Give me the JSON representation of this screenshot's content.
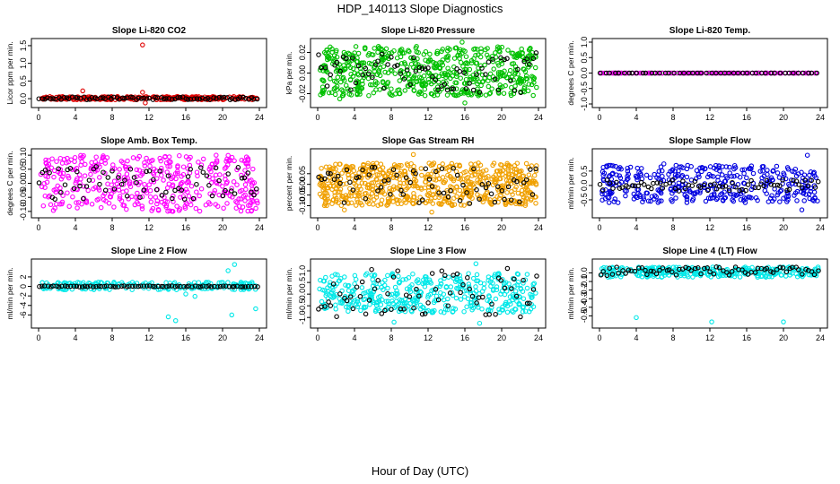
{
  "main_title": "HDP_140113  Slope Diagnostics",
  "x_axis_label": "Hour of Day (UTC)",
  "chart_data": [
    {
      "type": "scatter",
      "title": "Slope Li-820 CO2",
      "ylabel": "Licor ppm per min.",
      "xlim": [
        0,
        24
      ],
      "ylim": [
        -0.15,
        1.6
      ],
      "xticks": [
        0,
        4,
        8,
        12,
        16,
        20,
        24
      ],
      "yticks": [
        0.0,
        0.5,
        1.0,
        1.5
      ],
      "ytick_labels": [
        "0.0",
        "0.5",
        "1.0",
        "1.5"
      ],
      "main_color": "#e00000",
      "center": 0.0,
      "spread": 0.02,
      "outliers": [
        {
          "x": 11.3,
          "y": 1.52
        },
        {
          "x": 11.3,
          "y": 0.18
        },
        {
          "x": 11.6,
          "y": -0.12
        },
        {
          "x": 4.8,
          "y": 0.22
        }
      ],
      "series": [
        {
          "name": "primary",
          "color": "#e00000",
          "count": 280,
          "y_min": -0.03,
          "y_max": 0.06
        },
        {
          "name": "reference",
          "color": "#000000",
          "count": 80,
          "y_min": -0.03,
          "y_max": 0.05
        }
      ]
    },
    {
      "type": "scatter",
      "title": "Slope Li-820 Pressure",
      "ylabel": "kPa per min.",
      "xlim": [
        0,
        24
      ],
      "ylim": [
        -0.03,
        0.03
      ],
      "xticks": [
        0,
        4,
        8,
        12,
        16,
        20,
        24
      ],
      "yticks": [
        -0.02,
        0.0,
        0.02
      ],
      "ytick_labels": [
        "-0.02",
        "0.00",
        "0.02"
      ],
      "main_color": "#00c000",
      "center": 0.002,
      "spread": 0.02,
      "outliers": [
        {
          "x": 15.7,
          "y": 0.03
        },
        {
          "x": 2.4,
          "y": -0.025
        },
        {
          "x": 16.0,
          "y": -0.029
        }
      ],
      "series": [
        {
          "name": "primary",
          "color": "#00c000",
          "count": 600,
          "y_min": -0.022,
          "y_max": 0.026
        },
        {
          "name": "reference",
          "color": "#000000",
          "count": 70,
          "y_min": -0.02,
          "y_max": 0.02
        }
      ]
    },
    {
      "type": "scatter",
      "title": "Slope Li-820 Temp.",
      "ylabel": "degrees C per min.",
      "xlim": [
        0,
        24
      ],
      "ylim": [
        -1.0,
        1.0
      ],
      "xticks": [
        0,
        4,
        8,
        12,
        16,
        20,
        24
      ],
      "yticks": [
        -1.0,
        -0.5,
        0.0,
        0.5,
        1.0
      ],
      "ytick_labels": [
        "-1.0",
        "-0.5",
        "0.0",
        "0.5",
        "1.0"
      ],
      "main_color": "#e000e0",
      "center": 0.0,
      "spread": 0.0,
      "outliers": [],
      "series": [
        {
          "name": "primary",
          "color": "#e000e0",
          "count": 130,
          "y_min": 0.0,
          "y_max": 0.0
        },
        {
          "name": "reference",
          "color": "#000000",
          "count": 48,
          "y_min": 0.0,
          "y_max": 0.0
        }
      ]
    },
    {
      "type": "scatter",
      "title": "Slope Amb. Box Temp.",
      "ylabel": "degrees C per min.",
      "xlim": [
        0,
        24
      ],
      "ylim": [
        -0.11,
        0.11
      ],
      "xticks": [
        0,
        4,
        8,
        12,
        16,
        20,
        24
      ],
      "yticks": [
        -0.1,
        -0.05,
        0.0,
        0.05,
        0.1
      ],
      "ytick_labels": [
        "-0.10",
        "-0.05",
        "0.00",
        "0.05",
        "0.10"
      ],
      "main_color": "#ff00ff",
      "center": 0.0,
      "spread": 0.09,
      "outliers": [
        {
          "x": 14.6,
          "y": -0.1
        },
        {
          "x": 19.3,
          "y": 0.1
        }
      ],
      "series": [
        {
          "name": "primary",
          "color": "#ff00ff",
          "count": 420,
          "y_min": -0.1,
          "y_max": 0.1
        },
        {
          "name": "reference",
          "color": "#000000",
          "count": 70,
          "y_min": -0.06,
          "y_max": 0.06
        }
      ]
    },
    {
      "type": "scatter",
      "title": "Slope Gas Stream RH",
      "ylabel": "percent per min.",
      "xlim": [
        0,
        24
      ],
      "ylim": [
        -0.14,
        0.15
      ],
      "xticks": [
        0,
        4,
        8,
        12,
        16,
        20,
        24
      ],
      "yticks": [
        -0.1,
        -0.05,
        0.0,
        0.05
      ],
      "ytick_labels": [
        "-0.10",
        "-0.05",
        "0.00",
        "0.05"
      ],
      "main_color": "#f0a000",
      "center": 0.0,
      "spread": 0.1,
      "outliers": [
        {
          "x": 10.4,
          "y": 0.14
        },
        {
          "x": 2.9,
          "y": -0.12
        },
        {
          "x": 12.4,
          "y": -0.13
        }
      ],
      "series": [
        {
          "name": "primary",
          "color": "#f0a000",
          "count": 650,
          "y_min": -0.1,
          "y_max": 0.1
        },
        {
          "name": "reference",
          "color": "#000000",
          "count": 70,
          "y_min": -0.09,
          "y_max": 0.08
        }
      ]
    },
    {
      "type": "scatter",
      "title": "Slope Sample Flow",
      "ylabel": "ml/min per min.",
      "xlim": [
        0,
        24
      ],
      "ylim": [
        -1.0,
        1.15
      ],
      "xticks": [
        0,
        4,
        8,
        12,
        16,
        20,
        24
      ],
      "yticks": [
        -0.5,
        0.0,
        0.5
      ],
      "ytick_labels": [
        "-0.5",
        "0.0",
        "0.5"
      ],
      "main_color": "#0000e0",
      "center": 0.0,
      "spread": 0.5,
      "outliers": [
        {
          "x": 22.6,
          "y": 1.05
        },
        {
          "x": 22.0,
          "y": -0.85
        },
        {
          "x": 7.0,
          "y": 0.75
        }
      ],
      "series": [
        {
          "name": "primary",
          "color": "#0000e0",
          "count": 380,
          "y_min": -0.6,
          "y_max": 0.7
        },
        {
          "name": "reference",
          "color": "#000000",
          "count": 70,
          "y_min": -0.2,
          "y_max": 0.2
        }
      ]
    },
    {
      "type": "scatter",
      "title": "Slope Line 2 Flow",
      "ylabel": "ml/min per min.",
      "xlim": [
        0,
        24
      ],
      "ylim": [
        -8,
        5
      ],
      "xticks": [
        0,
        4,
        8,
        12,
        16,
        20,
        24
      ],
      "yticks": [
        -6,
        -4,
        -2,
        0,
        2
      ],
      "ytick_labels": [
        "-6",
        "-4",
        "-2",
        "0",
        "2"
      ],
      "main_color": "#00e8e8",
      "center": 0.0,
      "spread": 0.7,
      "outliers": [
        {
          "x": 14.1,
          "y": -6.4
        },
        {
          "x": 14.9,
          "y": -7.2
        },
        {
          "x": 21.3,
          "y": 4.6
        },
        {
          "x": 20.6,
          "y": 3.3
        },
        {
          "x": 21.0,
          "y": -6.0
        },
        {
          "x": 23.6,
          "y": -4.7
        },
        {
          "x": 16.0,
          "y": -1.6
        },
        {
          "x": 17.0,
          "y": -2.1
        }
      ],
      "series": [
        {
          "name": "primary",
          "color": "#00e8e8",
          "count": 200,
          "y_min": -0.7,
          "y_max": 0.9
        },
        {
          "name": "reference",
          "color": "#000000",
          "count": 78,
          "y_min": -0.1,
          "y_max": 0.1
        }
      ]
    },
    {
      "type": "scatter",
      "title": "Slope Line 3 Flow",
      "ylabel": "ml/min per min.",
      "xlim": [
        0,
        24
      ],
      "ylim": [
        -1.3,
        1.35
      ],
      "xticks": [
        0,
        4,
        8,
        12,
        16,
        20,
        24
      ],
      "yticks": [
        -1.0,
        -0.5,
        0.0,
        0.5,
        1.0
      ],
      "ytick_labels": [
        "-1.0",
        "-0.5",
        "0.0",
        "0.5",
        "1.0"
      ],
      "main_color": "#00e8e8",
      "center": 0.0,
      "spread": 0.7,
      "outliers": [
        {
          "x": 17.2,
          "y": 1.3
        },
        {
          "x": 17.6,
          "y": -1.25
        },
        {
          "x": 8.3,
          "y": -1.2
        }
      ],
      "series": [
        {
          "name": "primary",
          "color": "#00e8e8",
          "count": 420,
          "y_min": -0.8,
          "y_max": 0.9
        },
        {
          "name": "reference",
          "color": "#000000",
          "count": 70,
          "y_min": -1.0,
          "y_max": 1.1
        }
      ]
    },
    {
      "type": "scatter",
      "title": "Slope Line 4 (LT) Flow",
      "ylabel": "ml/min per min.",
      "xlim": [
        0,
        24
      ],
      "ylim": [
        -0.6,
        0.12
      ],
      "xticks": [
        0,
        4,
        8,
        12,
        16,
        20,
        24
      ],
      "yticks": [
        -0.5,
        -0.4,
        -0.3,
        -0.2,
        -0.1,
        0.0
      ],
      "ytick_labels": [
        "-0.5",
        "-0.4",
        "-0.3",
        "-0.2",
        "-0.1",
        "0.0"
      ],
      "main_color": "#00e8e8",
      "center": 0.0,
      "spread": 0.05,
      "outliers": [
        {
          "x": 4.0,
          "y": -0.52
        },
        {
          "x": 12.2,
          "y": -0.57
        },
        {
          "x": 20.0,
          "y": -0.57
        }
      ],
      "series": [
        {
          "name": "primary",
          "color": "#00e8e8",
          "count": 300,
          "y_min": -0.05,
          "y_max": 0.07
        },
        {
          "name": "reference",
          "color": "#000000",
          "count": 70,
          "y_min": -0.03,
          "y_max": 0.07
        }
      ]
    }
  ]
}
